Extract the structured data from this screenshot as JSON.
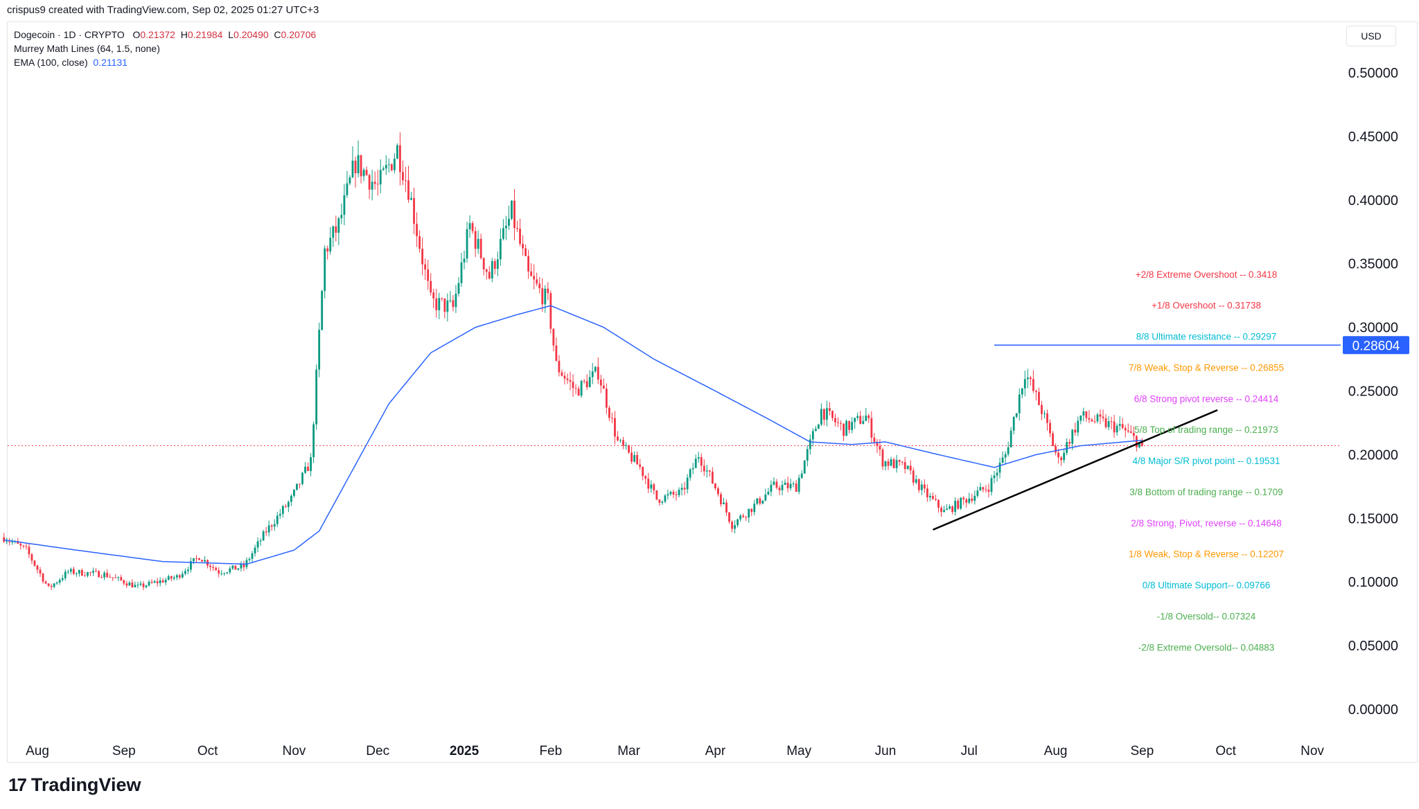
{
  "caption": "crispus9 created with TradingView.com, Sep 02, 2025 01:27 UTC+3",
  "currency": "USD",
  "brand": "TradingView",
  "legend": {
    "symbol": "Dogecoin · 1D · CRYPTO",
    "o_label": "O",
    "o": "0.21372",
    "h_label": "H",
    "h": "0.21984",
    "l_label": "L",
    "l": "0.20490",
    "c_label": "C",
    "c": "0.20706",
    "murrey": "Murrey Math Lines (64, 1.5, none)",
    "ema_label": "EMA (100, close)",
    "ema_value": "0.21131"
  },
  "chart_data": {
    "type": "candlestick",
    "y_ticks": [
      "0.50000",
      "0.45000",
      "0.40000",
      "0.35000",
      "0.30000",
      "0.25000",
      "0.20000",
      "0.15000",
      "0.10000",
      "0.05000",
      "0.00000"
    ],
    "ylim": [
      0,
      0.5
    ],
    "x_labels": [
      {
        "label": "Aug",
        "date": "2024-08-01"
      },
      {
        "label": "Sep",
        "date": "2024-09-01"
      },
      {
        "label": "Oct",
        "date": "2024-10-01"
      },
      {
        "label": "Nov",
        "date": "2024-11-01"
      },
      {
        "label": "Dec",
        "date": "2024-12-01"
      },
      {
        "label": "2025",
        "date": "2025-01-01",
        "bold": true
      },
      {
        "label": "Feb",
        "date": "2025-02-01"
      },
      {
        "label": "Mar",
        "date": "2025-03-01"
      },
      {
        "label": "Apr",
        "date": "2025-04-01"
      },
      {
        "label": "May",
        "date": "2025-05-01"
      },
      {
        "label": "Jun",
        "date": "2025-06-01"
      },
      {
        "label": "Jul",
        "date": "2025-07-01"
      },
      {
        "label": "Aug",
        "date": "2025-08-01"
      },
      {
        "label": "Sep",
        "date": "2025-09-01"
      },
      {
        "label": "Oct",
        "date": "2025-10-01"
      },
      {
        "label": "Nov",
        "date": "2025-11-01"
      }
    ],
    "price_keypoints": [
      [
        "2024-07-20",
        0.135
      ],
      [
        "2024-07-28",
        0.125
      ],
      [
        "2024-08-05",
        0.095
      ],
      [
        "2024-08-12",
        0.108
      ],
      [
        "2024-08-25",
        0.106
      ],
      [
        "2024-09-06",
        0.096
      ],
      [
        "2024-09-20",
        0.104
      ],
      [
        "2024-09-28",
        0.12
      ],
      [
        "2024-10-05",
        0.108
      ],
      [
        "2024-10-14",
        0.112
      ],
      [
        "2024-10-22",
        0.14
      ],
      [
        "2024-10-31",
        0.165
      ],
      [
        "2024-11-07",
        0.195
      ],
      [
        "2024-11-12",
        0.36
      ],
      [
        "2024-11-17",
        0.38
      ],
      [
        "2024-11-23",
        0.43
      ],
      [
        "2024-12-01",
        0.41
      ],
      [
        "2024-12-08",
        0.44
      ],
      [
        "2024-12-12",
        0.41
      ],
      [
        "2024-12-20",
        0.32
      ],
      [
        "2024-12-28",
        0.315
      ],
      [
        "2025-01-03",
        0.38
      ],
      [
        "2025-01-10",
        0.34
      ],
      [
        "2025-01-18",
        0.39
      ],
      [
        "2025-01-24",
        0.34
      ],
      [
        "2025-01-31",
        0.32
      ],
      [
        "2025-02-03",
        0.27
      ],
      [
        "2025-02-10",
        0.25
      ],
      [
        "2025-02-18",
        0.265
      ],
      [
        "2025-02-25",
        0.21
      ],
      [
        "2025-03-05",
        0.19
      ],
      [
        "2025-03-11",
        0.165
      ],
      [
        "2025-03-20",
        0.17
      ],
      [
        "2025-03-26",
        0.2
      ],
      [
        "2025-04-02",
        0.17
      ],
      [
        "2025-04-07",
        0.145
      ],
      [
        "2025-04-15",
        0.16
      ],
      [
        "2025-04-22",
        0.175
      ],
      [
        "2025-04-30",
        0.175
      ],
      [
        "2025-05-09",
        0.235
      ],
      [
        "2025-05-17",
        0.22
      ],
      [
        "2025-05-25",
        0.23
      ],
      [
        "2025-05-31",
        0.195
      ],
      [
        "2025-06-08",
        0.19
      ],
      [
        "2025-06-15",
        0.17
      ],
      [
        "2025-06-22",
        0.155
      ],
      [
        "2025-06-30",
        0.165
      ],
      [
        "2025-07-08",
        0.175
      ],
      [
        "2025-07-14",
        0.2
      ],
      [
        "2025-07-21",
        0.265
      ],
      [
        "2025-07-27",
        0.235
      ],
      [
        "2025-08-02",
        0.195
      ],
      [
        "2025-08-10",
        0.23
      ],
      [
        "2025-08-18",
        0.225
      ],
      [
        "2025-08-25",
        0.22
      ],
      [
        "2025-09-01",
        0.207
      ]
    ],
    "ema_keypoints": [
      [
        "2024-07-20",
        0.133
      ],
      [
        "2024-08-15",
        0.125
      ],
      [
        "2024-09-15",
        0.116
      ],
      [
        "2024-10-15",
        0.114
      ],
      [
        "2024-11-01",
        0.125
      ],
      [
        "2024-11-10",
        0.14
      ],
      [
        "2024-11-20",
        0.18
      ],
      [
        "2024-12-05",
        0.24
      ],
      [
        "2024-12-20",
        0.28
      ],
      [
        "2025-01-05",
        0.3
      ],
      [
        "2025-01-20",
        0.31
      ],
      [
        "2025-02-01",
        0.317
      ],
      [
        "2025-02-20",
        0.3
      ],
      [
        "2025-03-10",
        0.275
      ],
      [
        "2025-04-01",
        0.25
      ],
      [
        "2025-04-20",
        0.228
      ],
      [
        "2025-05-05",
        0.21
      ],
      [
        "2025-05-20",
        0.208
      ],
      [
        "2025-06-01",
        0.21
      ],
      [
        "2025-06-20",
        0.2
      ],
      [
        "2025-07-10",
        0.19
      ],
      [
        "2025-07-25",
        0.2
      ],
      [
        "2025-08-10",
        0.207
      ],
      [
        "2025-09-01",
        0.2113
      ]
    ],
    "current_price": 0.20706,
    "resistance": {
      "value": 0.28604,
      "label": "0.28604",
      "from": "2025-07-10"
    },
    "trendline": {
      "from": [
        "2025-06-18",
        0.141
      ],
      "to": [
        "2025-09-28",
        0.235
      ]
    },
    "murrey_levels": [
      {
        "text": "+2/8 Extreme Overshoot --  0.3418",
        "value": 0.3418,
        "color": "#f23645"
      },
      {
        "text": "+1/8 Overshoot --  0.31738",
        "value": 0.31738,
        "color": "#f23645"
      },
      {
        "text": "8/8 Ultimate resistance --  0.29297",
        "value": 0.29297,
        "color": "#00bcd4"
      },
      {
        "text": "7/8 Weak, Stop & Reverse --  0.26855",
        "value": 0.26855,
        "color": "#ff9800"
      },
      {
        "text": "6/8 Strong pivot reverse --  0.24414",
        "value": 0.24414,
        "color": "#e040fb"
      },
      {
        "text": "5/8 Top of trading range --  0.21973",
        "value": 0.21973,
        "color": "#4caf50"
      },
      {
        "text": "4/8 Major S/R pivot point --  0.19531",
        "value": 0.19531,
        "color": "#00bcd4"
      },
      {
        "text": "3/8 Bottom of trading range --  0.1709",
        "value": 0.1709,
        "color": "#4caf50"
      },
      {
        "text": "2/8 Strong, Pivot, reverse --  0.14648",
        "value": 0.14648,
        "color": "#e040fb"
      },
      {
        "text": "1/8 Weak, Stop & Reverse --  0.12207",
        "value": 0.12207,
        "color": "#ff9800"
      },
      {
        "text": "0/8 Ultimate Support-- 0.09766",
        "value": 0.09766,
        "color": "#00bcd4"
      },
      {
        "text": "-1/8 Oversold-- 0.07324",
        "value": 0.07324,
        "color": "#4caf50"
      },
      {
        "text": "-2/8 Extreme Oversold-- 0.04883",
        "value": 0.04883,
        "color": "#4caf50"
      }
    ],
    "colors": {
      "up": "#089981",
      "down": "#f23645",
      "ema": "#2962ff",
      "trendline": "#000000",
      "resistance": "#2962ff",
      "price_line": "#f23645"
    }
  }
}
